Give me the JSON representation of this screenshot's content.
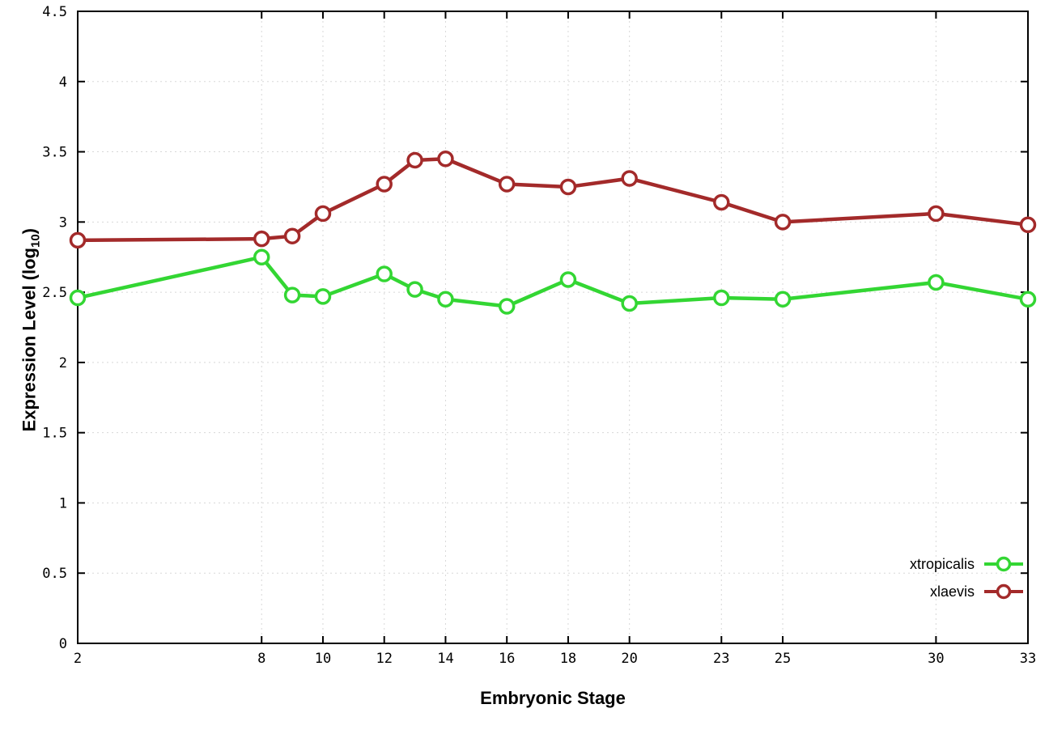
{
  "chart_data": {
    "type": "line",
    "title": "",
    "xlabel": "Embryonic Stage",
    "ylabel": "Expression Level (log10)",
    "ylabel_parts": {
      "main": "Expression Level (log",
      "sub": "10",
      "end": ")"
    },
    "xlim": [
      2,
      33
    ],
    "ylim": [
      0,
      4.5
    ],
    "x_ticks": [
      2,
      8,
      10,
      12,
      14,
      16,
      18,
      20,
      23,
      25,
      30,
      33
    ],
    "y_ticks": [
      0,
      0.5,
      1,
      1.5,
      2,
      2.5,
      3,
      3.5,
      4,
      4.5
    ],
    "grid": true,
    "legend_position": "bottom-right",
    "x": [
      2,
      8,
      9,
      10,
      12,
      13,
      14,
      16,
      18,
      20,
      23,
      25,
      30,
      33
    ],
    "series": [
      {
        "name": "xtropicalis",
        "color": "#33d633",
        "values": [
          2.46,
          2.75,
          2.48,
          2.47,
          2.63,
          2.52,
          2.45,
          2.4,
          2.59,
          2.42,
          2.46,
          2.45,
          2.57,
          2.45
        ]
      },
      {
        "name": "xlaevis",
        "color": "#a32a2a",
        "values": [
          2.87,
          2.88,
          2.9,
          3.06,
          3.27,
          3.44,
          3.45,
          3.27,
          3.25,
          3.31,
          3.14,
          3.0,
          3.06,
          2.98
        ]
      }
    ],
    "colors": {
      "grid": "#d8d8d8",
      "axis": "#000000",
      "background": "#ffffff"
    }
  }
}
